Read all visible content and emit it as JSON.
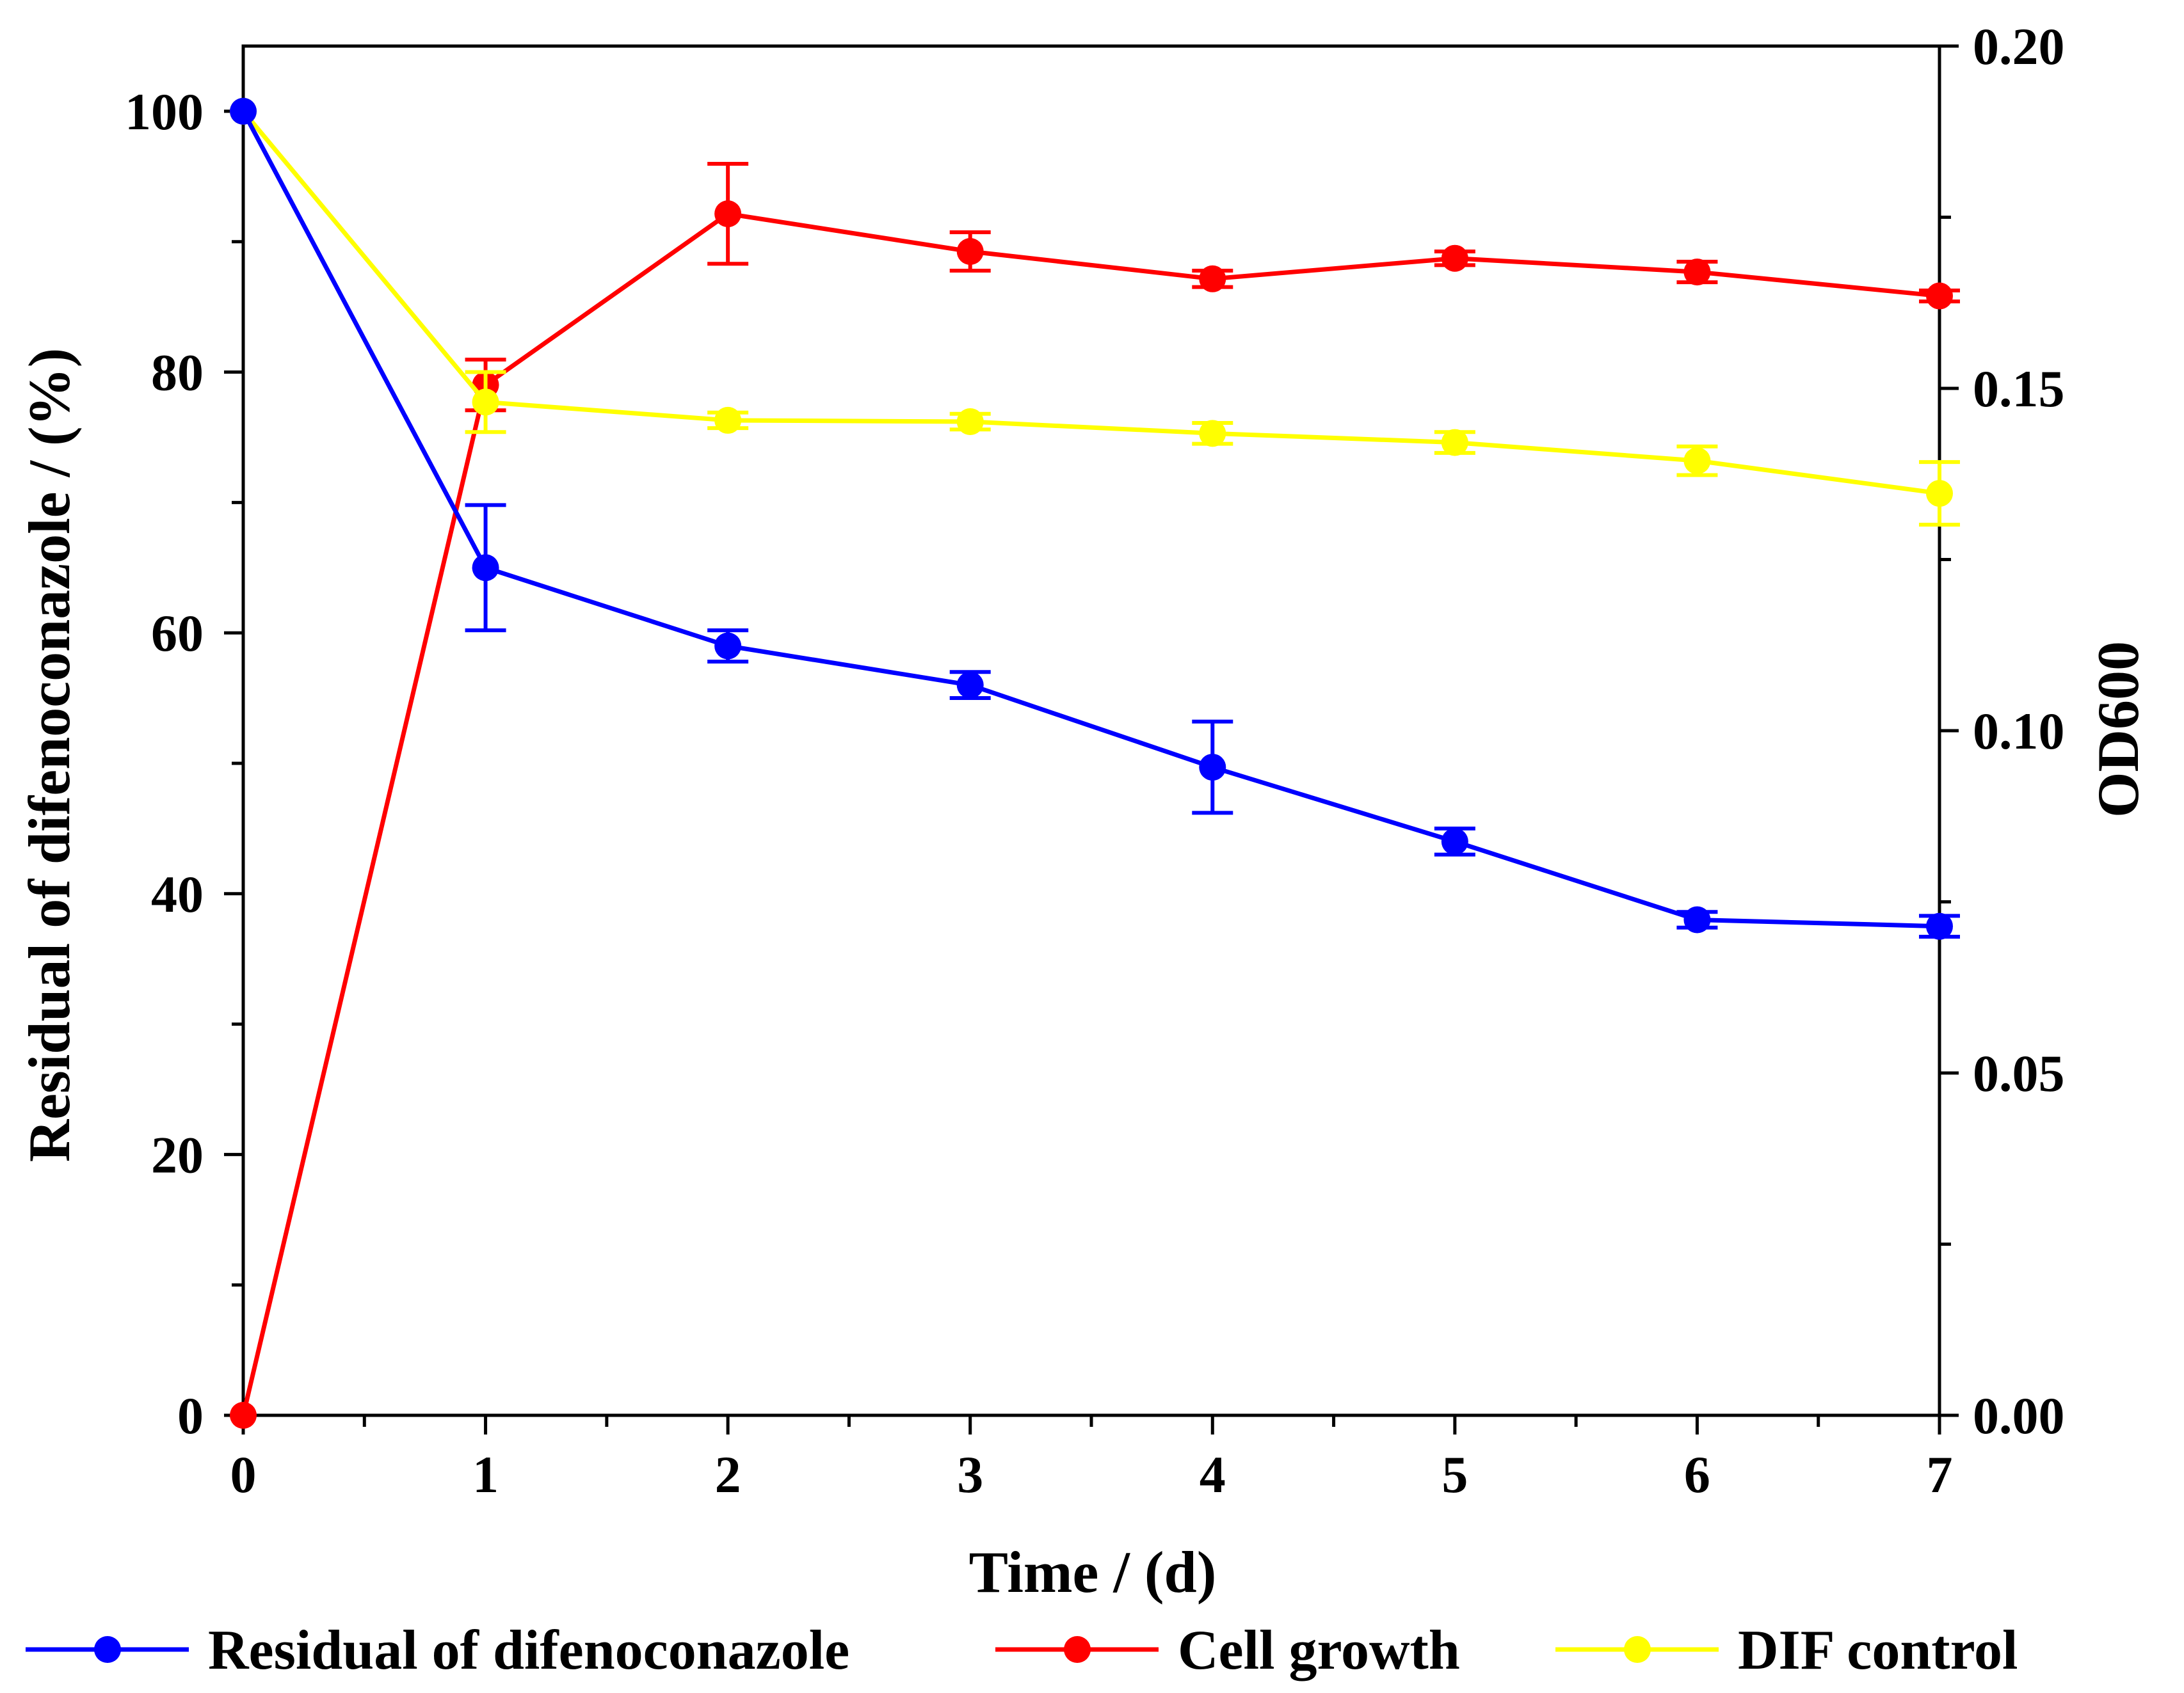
{
  "chart_data": {
    "type": "line",
    "title": "",
    "xlabel": "Time / (d)",
    "ylabel": "Residual of difenoconazole / (%)",
    "y2label": "OD600",
    "x": [
      0,
      1,
      2,
      3,
      4,
      5,
      6,
      7
    ],
    "xlim": [
      0,
      7
    ],
    "ylim": [
      0,
      105
    ],
    "y2lim": [
      0,
      0.2
    ],
    "x_tick_labels": [
      "0",
      "1",
      "2",
      "3",
      "4",
      "5",
      "6",
      "7"
    ],
    "y_ticks": [
      0,
      20,
      40,
      60,
      80,
      100
    ],
    "y_tick_labels": [
      "0",
      "20",
      "40",
      "60",
      "80",
      "100"
    ],
    "y2_ticks": [
      0,
      0.05,
      0.1,
      0.15,
      0.2
    ],
    "y2_tick_labels": [
      "0.00",
      "0.05",
      "0.10",
      "0.15",
      "0.20"
    ],
    "grid": false,
    "legend_position": "bottom",
    "series": [
      {
        "name": "Residual of difenoconazole",
        "axis": "left",
        "color": "#0000ff",
        "values": [
          100,
          65,
          59,
          56,
          49.7,
          44,
          38,
          37.5
        ],
        "errors": [
          0,
          4.8,
          1.2,
          1.0,
          3.5,
          1.0,
          0.6,
          0.8
        ]
      },
      {
        "name": "Cell growth",
        "axis": "right",
        "color": "#ff0000",
        "values": [
          0,
          0.1505,
          0.1755,
          0.17,
          0.166,
          0.169,
          0.167,
          0.1635
        ],
        "errors": [
          0,
          0.0037,
          0.0073,
          0.0028,
          0.0012,
          0.001,
          0.0015,
          0.0008
        ]
      },
      {
        "name": "DIF control",
        "axis": "left",
        "color": "#ffff00",
        "values": [
          100,
          77.7,
          76.3,
          76.2,
          75.3,
          74.6,
          73.2,
          70.7
        ],
        "errors": [
          0,
          2.3,
          0.6,
          0.6,
          0.8,
          0.8,
          1.1,
          2.4
        ]
      }
    ]
  }
}
